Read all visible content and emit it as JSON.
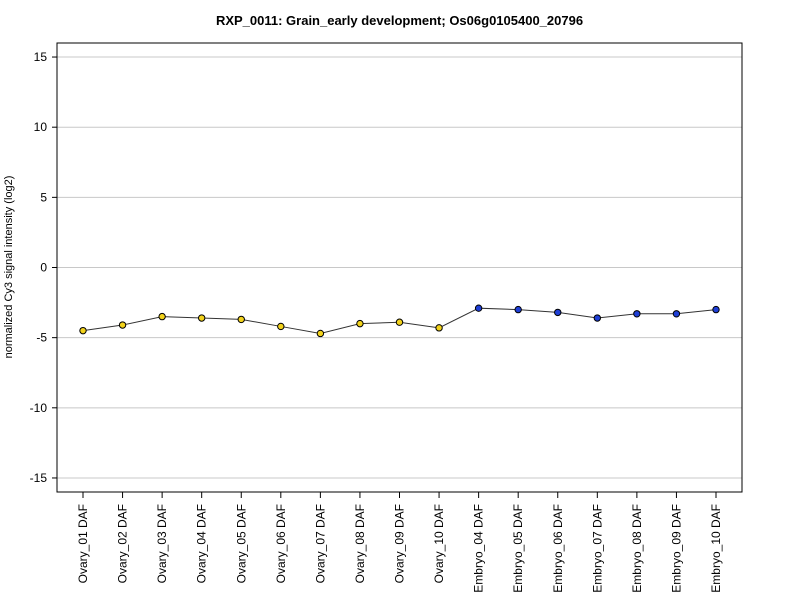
{
  "chart_data": {
    "type": "line",
    "title": "RXP_0011: Grain_early development; Os06g0105400_20796",
    "xlabel": "",
    "ylabel": "normalized Cy3 signal intensity (log2)",
    "ylim": [
      -16,
      16
    ],
    "yticks": [
      -15,
      -10,
      -5,
      0,
      5,
      10,
      15
    ],
    "grid": "horizontal",
    "categories": [
      "Ovary_01 DAF",
      "Ovary_02 DAF",
      "Ovary_03 DAF",
      "Ovary_04 DAF",
      "Ovary_05 DAF",
      "Ovary_06 DAF",
      "Ovary_07 DAF",
      "Ovary_08 DAF",
      "Ovary_09 DAF",
      "Ovary_10 DAF",
      "Embryo_04 DAF",
      "Embryo_05 DAF",
      "Embryo_06 DAF",
      "Embryo_07 DAF",
      "Embryo_08 DAF",
      "Embryo_09 DAF",
      "Embryo_10 DAF"
    ],
    "values": [
      -4.5,
      -4.1,
      -3.5,
      -3.6,
      -3.7,
      -4.2,
      -4.7,
      -4.0,
      -3.9,
      -4.3,
      -2.9,
      -3.0,
      -3.2,
      -3.6,
      -3.3,
      -3.3,
      -3.0
    ],
    "point_colors": [
      "#f2d21b",
      "#f2d21b",
      "#f2d21b",
      "#f2d21b",
      "#f2d21b",
      "#f2d21b",
      "#f2d21b",
      "#f2d21b",
      "#f2d21b",
      "#f2d21b",
      "#1f3fd6",
      "#1f3fd6",
      "#1f3fd6",
      "#1f3fd6",
      "#1f3fd6",
      "#1f3fd6",
      "#1f3fd6"
    ],
    "line_color": "#333333",
    "grid_color": "#c8c8c8"
  }
}
